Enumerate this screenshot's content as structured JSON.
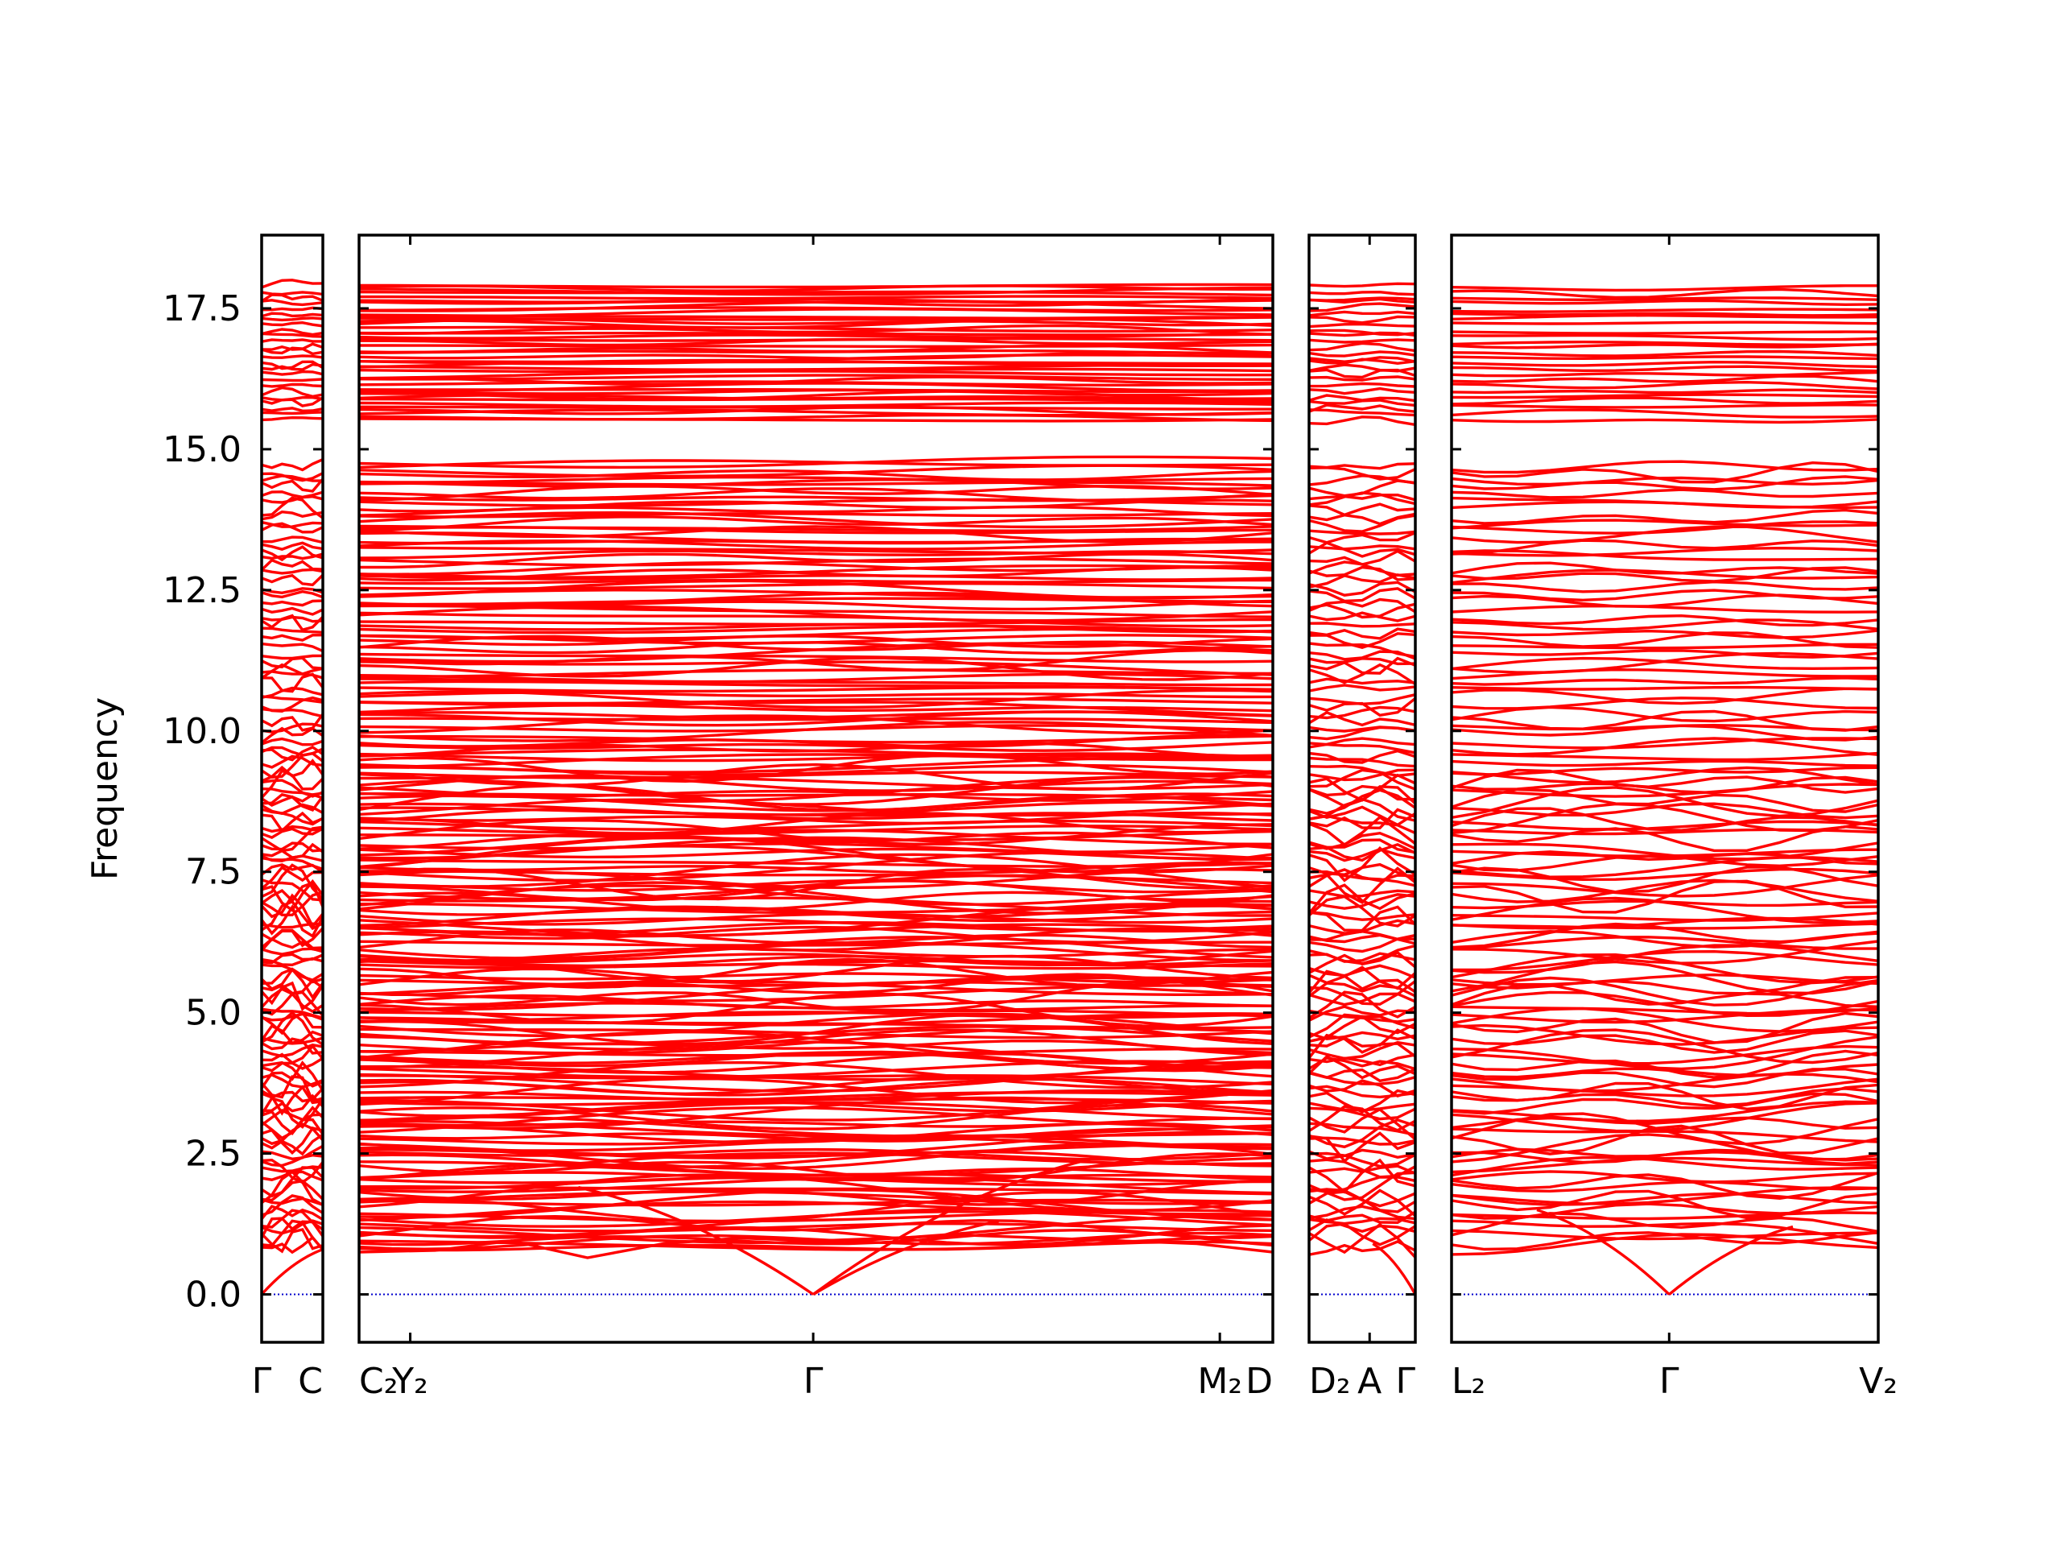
{
  "chart_data": {
    "type": "line",
    "title": "",
    "ylabel": "Frequency",
    "xlabel": "",
    "ylim": [
      -0.85,
      18.8
    ],
    "yticks": [
      {
        "value": 0.0,
        "label": "0.0"
      },
      {
        "value": 2.5,
        "label": "2.5"
      },
      {
        "value": 5.0,
        "label": "5.0"
      },
      {
        "value": 7.5,
        "label": "7.5"
      },
      {
        "value": 10.0,
        "label": "10.0"
      },
      {
        "value": 12.5,
        "label": "12.5"
      },
      {
        "value": 15.0,
        "label": "15.0"
      },
      {
        "value": 17.5,
        "label": "17.5"
      }
    ],
    "line_color": "#ff0000",
    "zero_line_color": "#0000cc",
    "segments": [
      {
        "ticks": [
          {
            "pos": 0.0,
            "label": "Γ"
          },
          {
            "pos": 1.0,
            "label": "C"
          }
        ]
      },
      {
        "ticks": [
          {
            "pos": 0.0,
            "label": "C₂"
          },
          {
            "pos": 0.056,
            "label": "Y₂"
          },
          {
            "pos": 0.497,
            "label": "Γ"
          },
          {
            "pos": 0.942,
            "label": "M₂"
          },
          {
            "pos": 1.0,
            "label": "D"
          }
        ]
      },
      {
        "ticks": [
          {
            "pos": 0.0,
            "label": "D₂"
          },
          {
            "pos": 0.57,
            "label": "A"
          },
          {
            "pos": 1.0,
            "label": "Γ"
          }
        ]
      },
      {
        "ticks": [
          {
            "pos": 0.0,
            "label": "L₂"
          },
          {
            "pos": 0.51,
            "label": "Γ"
          },
          {
            "pos": 1.0,
            "label": "V₂"
          }
        ]
      }
    ],
    "acoustic_branches": [
      {
        "segment": 0,
        "from_pos": 0.0,
        "to_pos": 1.0,
        "from_freq": 0.0,
        "to_freq": 0.8
      },
      {
        "segment": 1,
        "from_pos": 0.497,
        "to_pos": 0.24,
        "from_freq": 0.0,
        "to_freq": 1.9
      },
      {
        "segment": 1,
        "from_pos": 0.497,
        "to_pos": 0.7,
        "from_freq": 0.0,
        "to_freq": 1.3
      },
      {
        "segment": 1,
        "from_pos": 0.497,
        "to_pos": 0.8,
        "from_freq": 0.0,
        "to_freq": 2.4
      },
      {
        "segment": 2,
        "from_pos": 1.0,
        "to_pos": 0.6,
        "from_freq": 0.0,
        "to_freq": 0.9
      },
      {
        "segment": 3,
        "from_pos": 0.51,
        "to_pos": 0.2,
        "from_freq": 0.0,
        "to_freq": 1.5
      },
      {
        "segment": 3,
        "from_pos": 0.51,
        "to_pos": 0.8,
        "from_freq": 0.0,
        "to_freq": 1.2
      }
    ],
    "lowest_band": {
      "segment": 1,
      "freqs": [
        0.75,
        0.78,
        0.95,
        0.65,
        0.9,
        1.0,
        0.95,
        1.0,
        1.05,
        1.0,
        0.95,
        0.9,
        0.75
      ]
    },
    "optical_band_ranges": [
      {
        "min": 0.8,
        "max": 9.5,
        "count": 150
      },
      {
        "min": 9.5,
        "max": 14.8,
        "count": 75
      },
      {
        "min": 15.5,
        "max": 17.95,
        "count": 45
      }
    ],
    "gap": [
      14.85,
      15.45
    ]
  }
}
